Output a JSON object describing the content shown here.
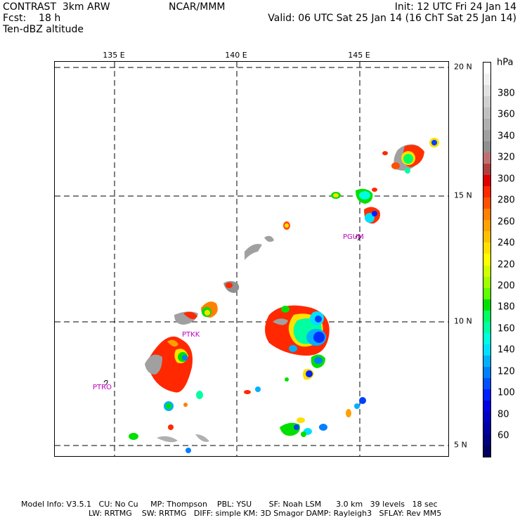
{
  "header": {
    "left_line1": "CONTRAST  3km ARW",
    "left_line2": "Fcst:    18 h",
    "left_line3": "Ten-dBZ altitude",
    "center": "NCAR/MMM",
    "right_line1": "Init: 12 UTC Fri 24 Jan 14",
    "right_line2": "Valid: 06 UTC Sat 25 Jan 14 (16 ChT Sat 25 Jan 14)"
  },
  "axes": {
    "lon_labels": [
      "135 E",
      "140 E",
      "145 E"
    ],
    "lat_labels": [
      "20 N",
      "15 N",
      "10 N",
      "5 N"
    ]
  },
  "colorbar": {
    "unit": "hPa",
    "labels": [
      "380",
      "360",
      "340",
      "320",
      "300",
      "280",
      "260",
      "240",
      "220",
      "200",
      "180",
      "160",
      "140",
      "120",
      "100",
      "80",
      "60"
    ],
    "colors": [
      "#ffffff",
      "#f0f0f0",
      "#e0e0e0",
      "#d0d0d0",
      "#c0c0c0",
      "#b0b0b0",
      "#a0a0a0",
      "#909090",
      "#c07070",
      "#b04040",
      "#e00000",
      "#ff2800",
      "#ff5000",
      "#ff8000",
      "#ffa000",
      "#ffc000",
      "#ffe000",
      "#ffff00",
      "#d0ff00",
      "#a0ff00",
      "#60ff00",
      "#00e000",
      "#00ff60",
      "#00ffa0",
      "#00ffe0",
      "#00e0ff",
      "#00b0ff",
      "#0080ff",
      "#0050ff",
      "#0020ff",
      "#0000e0",
      "#0000c0",
      "#0000a0",
      "#000080",
      "#000060"
    ]
  },
  "stations": [
    "PGUM",
    "PTKK",
    "PTRO"
  ],
  "footer": {
    "line1": "Model Info: V3.5.1   CU: No Cu     MP: Thompson    PBL: YSU       SF: Noah LSM      3.0 km   39 levels   18 sec",
    "line2": "LW: RRTMG    SW: RRTMG   DIFF: simple KM: 3D Smagor DAMP: Rayleigh3   SFLAY: Rev MM5"
  }
}
